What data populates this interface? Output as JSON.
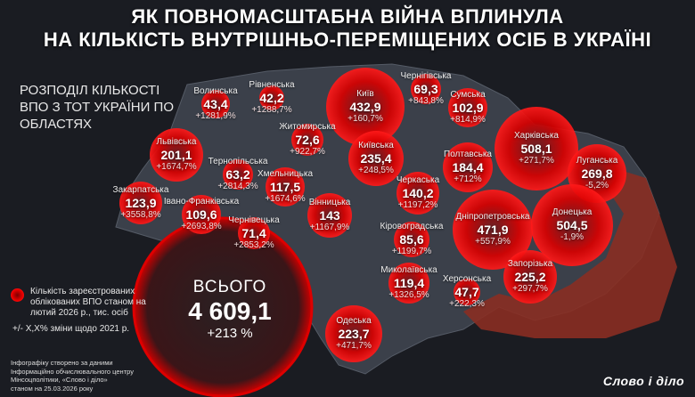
{
  "title_line1": "ЯК ПОВНОМАСШТАБНА ВІЙНА ВПЛИНУЛА",
  "title_line2": "НА КІЛЬКІСТЬ ВНУТРІШНЬО-ПЕРЕМІЩЕНИХ ОСІБ В УКРАЇНІ",
  "subtitle": "РОЗПОДІЛ КІЛЬКОСТІ ВПО З ТОТ УКРАЇНИ ПО ОБЛАСТЯХ",
  "colors": {
    "bubble": "#e50000",
    "map": "#3b404a",
    "occupied": "#8a2e22",
    "background": "#1a1c22"
  },
  "regions": [
    {
      "name": "Волинська",
      "value": "43,4",
      "change": "+1281,9%"
    },
    {
      "name": "Рівненська",
      "value": "42,2",
      "change": "+1288,7%"
    },
    {
      "name": "Київ",
      "value": "432,9",
      "change": "+160,7%"
    },
    {
      "name": "Чернігівська",
      "value": "69,3",
      "change": "+843,8%"
    },
    {
      "name": "Сумська",
      "value": "102,9",
      "change": "+814,9%"
    },
    {
      "name": "Львівська",
      "value": "201,1",
      "change": "+1674,7%"
    },
    {
      "name": "Житомирська",
      "value": "72,6",
      "change": "+922,7%"
    },
    {
      "name": "Київська",
      "value": "235,4",
      "change": "+248,5%"
    },
    {
      "name": "Полтавська",
      "value": "184,4",
      "change": "+712%"
    },
    {
      "name": "Харківська",
      "value": "508,1",
      "change": "+271,7%"
    },
    {
      "name": "Луганська",
      "value": "269,8",
      "change": "-5,2%"
    },
    {
      "name": "Тернопільська",
      "value": "63,2",
      "change": "+2814,3%"
    },
    {
      "name": "Хмельницька",
      "value": "117,5",
      "change": "+1674,6%"
    },
    {
      "name": "Черкаська",
      "value": "140,2",
      "change": "+1197,2%"
    },
    {
      "name": "Закарпатська",
      "value": "123,9",
      "change": "+3558,8%"
    },
    {
      "name": "Івано-Франківська",
      "value": "109,6",
      "change": "+2693,8%"
    },
    {
      "name": "Чернівецька",
      "value": "71,4",
      "change": "+2853,2%"
    },
    {
      "name": "Вінницька",
      "value": "143",
      "change": "+1167,9%"
    },
    {
      "name": "Кіровоградська",
      "value": "85,6",
      "change": "+1199,7%"
    },
    {
      "name": "Дніпропетровська",
      "value": "471,9",
      "change": "+557,9%"
    },
    {
      "name": "Донецька",
      "value": "504,5",
      "change": "-1,9%"
    },
    {
      "name": "Запорізька",
      "value": "225,2",
      "change": "+297,7%"
    },
    {
      "name": "Миколаївська",
      "value": "119,4",
      "change": "+1326,5%"
    },
    {
      "name": "Херсонська",
      "value": "47,7",
      "change": "+222,3%"
    },
    {
      "name": "Одеська",
      "value": "223,7",
      "change": "+471,7%"
    }
  ],
  "total": {
    "label": "ВСЬОГО",
    "value": "4 609,1",
    "change": "+213 %"
  },
  "legend": {
    "bubble_text": "Кількість зареєстрованих облікованих ВПО станом на лютий 2026 р., тис. осіб",
    "change_text": "+/- Х,Х% зміни щодо 2021 р."
  },
  "credits": [
    "Інфографіку створено за даними",
    "Інформаційно обчислювального центру",
    "Мінсоцполітики, «Слово і діло»",
    "станом на 25.03.2026 року"
  ],
  "logo": "Слово і діло"
}
